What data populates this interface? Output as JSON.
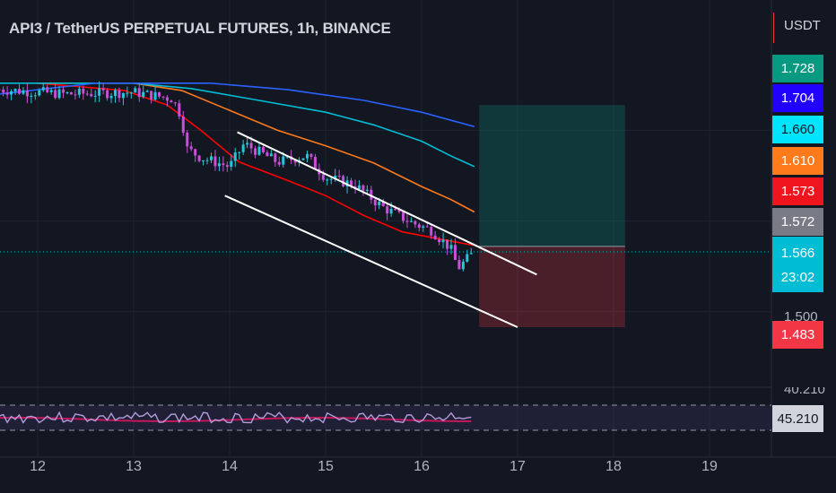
{
  "title": "API3 / TetherUS PERPETUAL FUTURES, 1h, BINANCE",
  "currency": "USDT",
  "chart_data": {
    "type": "candlestick",
    "x_ticks": [
      "12",
      "13",
      "14",
      "15",
      "16",
      "17",
      "18",
      "19"
    ],
    "y_range": [
      1.458,
      1.752
    ],
    "y_axis_partial_label": "1.500",
    "last_price": 1.566,
    "countdown": "23:02",
    "moving_averages": [
      {
        "color": "#ff0000",
        "last": 1.573
      },
      {
        "color": "#ff7a1a",
        "last": 1.61
      },
      {
        "color": "#00bcd4",
        "last": 1.66
      },
      {
        "color": "#2962ff",
        "last": 1.704
      }
    ],
    "position_tool": {
      "target": 1.728,
      "entry": 1.572,
      "stop": 1.483
    },
    "channel": {
      "upper": [
        [
          14.08,
          1.698
        ],
        [
          17.2,
          1.541
        ]
      ],
      "lower": [
        [
          13.95,
          1.628
        ],
        [
          17.0,
          1.483
        ]
      ]
    },
    "rsi": {
      "value": "45.210",
      "partial_label": "40.210"
    }
  },
  "price_labels": [
    {
      "text": "1.728",
      "color": "#089981"
    },
    {
      "text": "1.704",
      "color": "#2200ff"
    },
    {
      "text": "1.660",
      "color": "#00e5ff"
    },
    {
      "text": "1.610",
      "color": "#ff7a1a"
    },
    {
      "text": "1.573",
      "color": "#f0141e"
    },
    {
      "text": "1.572",
      "color": "#787b86"
    },
    {
      "text": "1.566",
      "color": "#00bcd4"
    },
    {
      "text": "1.483",
      "color": "#f23645"
    }
  ]
}
